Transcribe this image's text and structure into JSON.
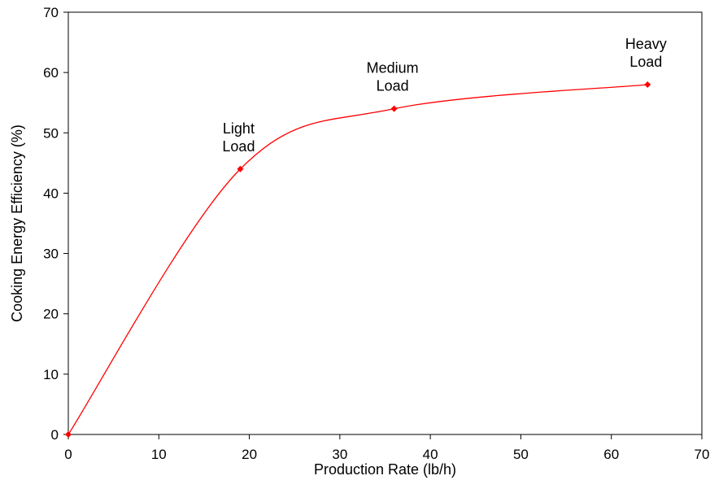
{
  "chart_data": {
    "type": "line",
    "xlabel": "Production Rate (lb/h)",
    "ylabel": "Cooking Energy Efficiency (%)",
    "xlim": [
      0,
      70
    ],
    "ylim": [
      0,
      70
    ],
    "xticks": [
      0,
      10,
      20,
      30,
      40,
      50,
      60,
      70
    ],
    "yticks": [
      0,
      10,
      20,
      30,
      40,
      50,
      60,
      70
    ],
    "grid": false,
    "smooth": true,
    "series": [
      {
        "color": "#ff0000",
        "marker": "diamond",
        "x": [
          0,
          19,
          36,
          64
        ],
        "y": [
          0,
          44,
          54,
          58
        ]
      }
    ],
    "annotations": [
      {
        "lines": [
          "Light",
          "Load"
        ],
        "x": 19,
        "y": 44
      },
      {
        "lines": [
          "Medium",
          "Load"
        ],
        "x": 36,
        "y": 54
      },
      {
        "lines": [
          "Heavy",
          "Load"
        ],
        "x": 64,
        "y": 58
      }
    ]
  }
}
